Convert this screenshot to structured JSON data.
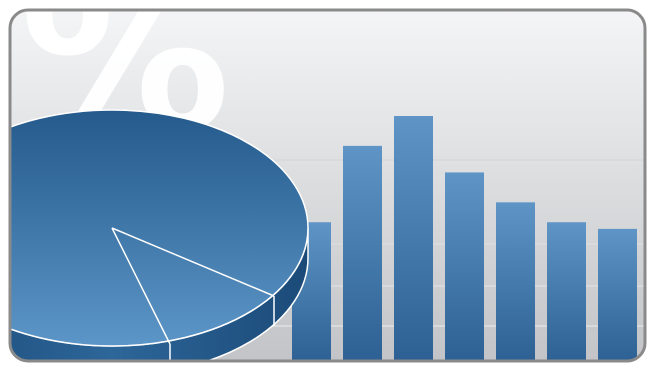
{
  "illustration": {
    "symbol": "%",
    "colors": {
      "frame_border": "#8a8a8a",
      "background_top": "#f4f5f6",
      "background_bottom": "#c2c4c7",
      "gridline": "#d8dadc",
      "bar_top": "#5e95c6",
      "bar_bottom": "#2c5f92",
      "pie_top": "#245a8c",
      "pie_bottom": "#5c95c7",
      "pie_edge": "#1b4a78",
      "symbol_color": "#ffffff"
    }
  },
  "chart_data": [
    {
      "type": "bar",
      "categories": [
        "",
        "",
        "",
        "",
        "",
        "",
        ""
      ],
      "values": [
        43,
        66,
        75,
        58,
        49,
        43,
        41
      ],
      "ylim": [
        0,
        100
      ],
      "grid": true
    },
    {
      "type": "pie",
      "values": [
        82,
        18
      ]
    }
  ]
}
